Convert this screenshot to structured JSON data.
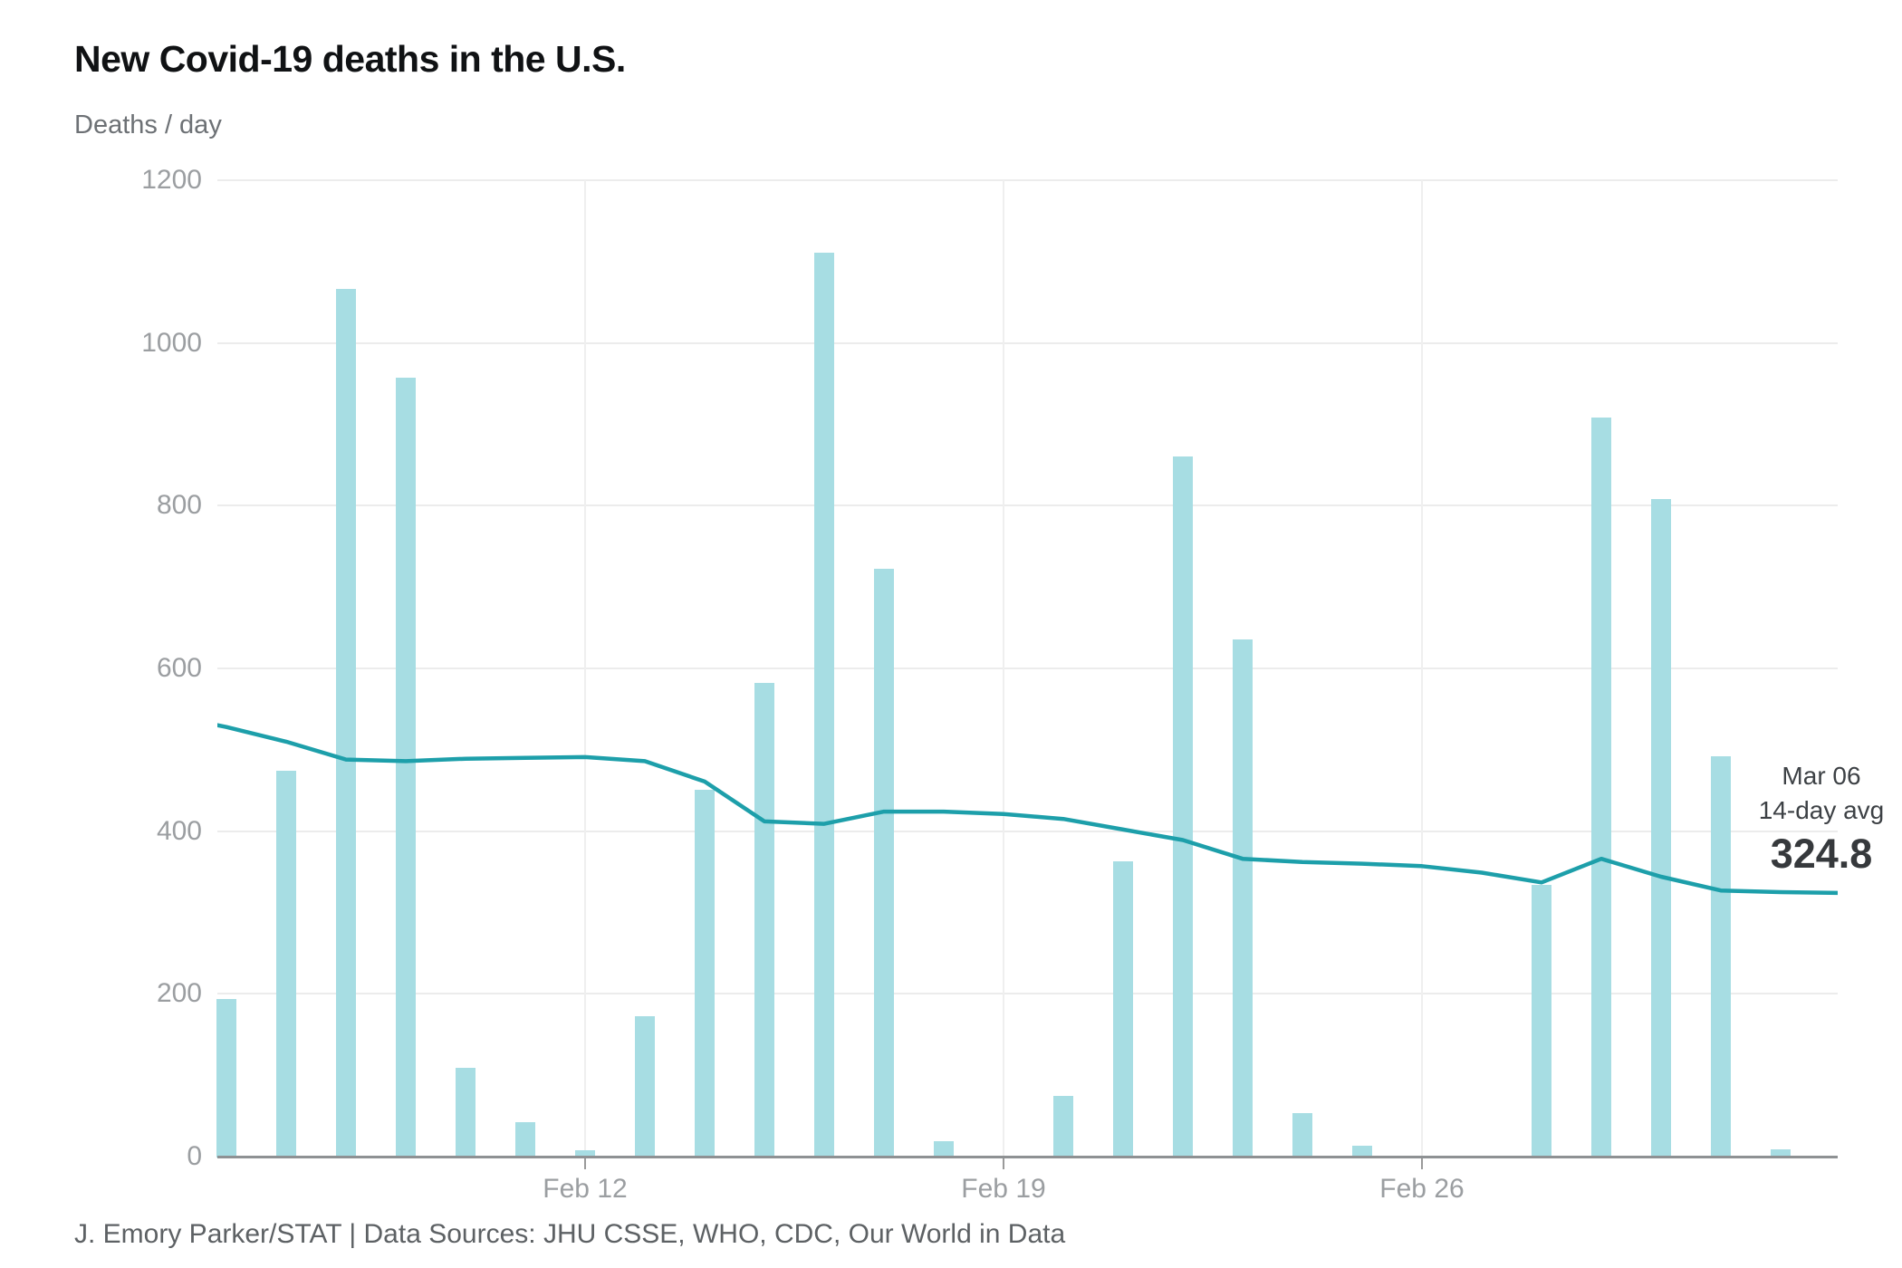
{
  "page": {
    "title": "New Covid-19 deaths in the U.S.",
    "subtitle": "Deaths / day",
    "footer": "J. Emory Parker/STAT | Data Sources: JHU CSSE, WHO, CDC, Our World in Data"
  },
  "annotation": {
    "date": "Mar 06",
    "label": "14-day avg",
    "value": "324.8"
  },
  "colors": {
    "background": "#ffffff",
    "bar": "#a7dde3",
    "line": "#1d9faa",
    "gridline": "#ececec",
    "date_gridline": "#efefef",
    "tick": "#9a9a9a",
    "axis": "#8e9193",
    "axis_label": "#9b9ea1",
    "title": "#101214",
    "subtitle": "#6d7175",
    "footer": "#5d6164",
    "annotation": "#3d4145",
    "annotation_value": "#36393c"
  },
  "chart_data": {
    "type": "bar",
    "title": "New Covid-19 deaths in the U.S.",
    "xlabel": "",
    "ylabel": "Deaths / day",
    "ylim": [
      0,
      1200
    ],
    "y_ticks": [
      0,
      200,
      400,
      600,
      800,
      1000,
      1200
    ],
    "grid": true,
    "legend_position": "none",
    "x_tick_labels": [
      "Feb 12",
      "Feb 19",
      "Feb 26"
    ],
    "x_tick_indices": [
      7,
      14,
      21
    ],
    "categories": [
      "Feb 05",
      "Feb 06",
      "Feb 07",
      "Feb 08",
      "Feb 09",
      "Feb 10",
      "Feb 11",
      "Feb 12",
      "Feb 13",
      "Feb 14",
      "Feb 15",
      "Feb 16",
      "Feb 17",
      "Feb 18",
      "Feb 19",
      "Feb 20",
      "Feb 21",
      "Feb 22",
      "Feb 23",
      "Feb 24",
      "Feb 25",
      "Feb 26",
      "Feb 27",
      "Feb 28",
      "Mar 01",
      "Mar 02",
      "Mar 03",
      "Mar 04",
      "Mar 05",
      "Mar 06"
    ],
    "series": [
      {
        "name": "Daily deaths",
        "type": "bar",
        "values": [
          0,
          194,
          474,
          1067,
          957,
          109,
          42,
          8,
          173,
          451,
          582,
          1111,
          723,
          19,
          0,
          75,
          363,
          861,
          636,
          53,
          13,
          0,
          0,
          334,
          908,
          808,
          492,
          9,
          0,
          0
        ]
      },
      {
        "name": "14-day avg",
        "type": "line",
        "values": [
          543,
          528,
          510,
          488,
          486,
          489,
          490,
          491,
          486,
          461,
          412,
          409,
          424,
          424,
          421,
          415,
          402,
          389,
          366,
          362,
          360,
          357,
          349,
          337,
          366,
          344,
          327,
          325,
          324,
          324.8
        ]
      }
    ],
    "annotation": {
      "date": "Mar 06",
      "label": "14-day avg",
      "value": 324.8
    }
  }
}
